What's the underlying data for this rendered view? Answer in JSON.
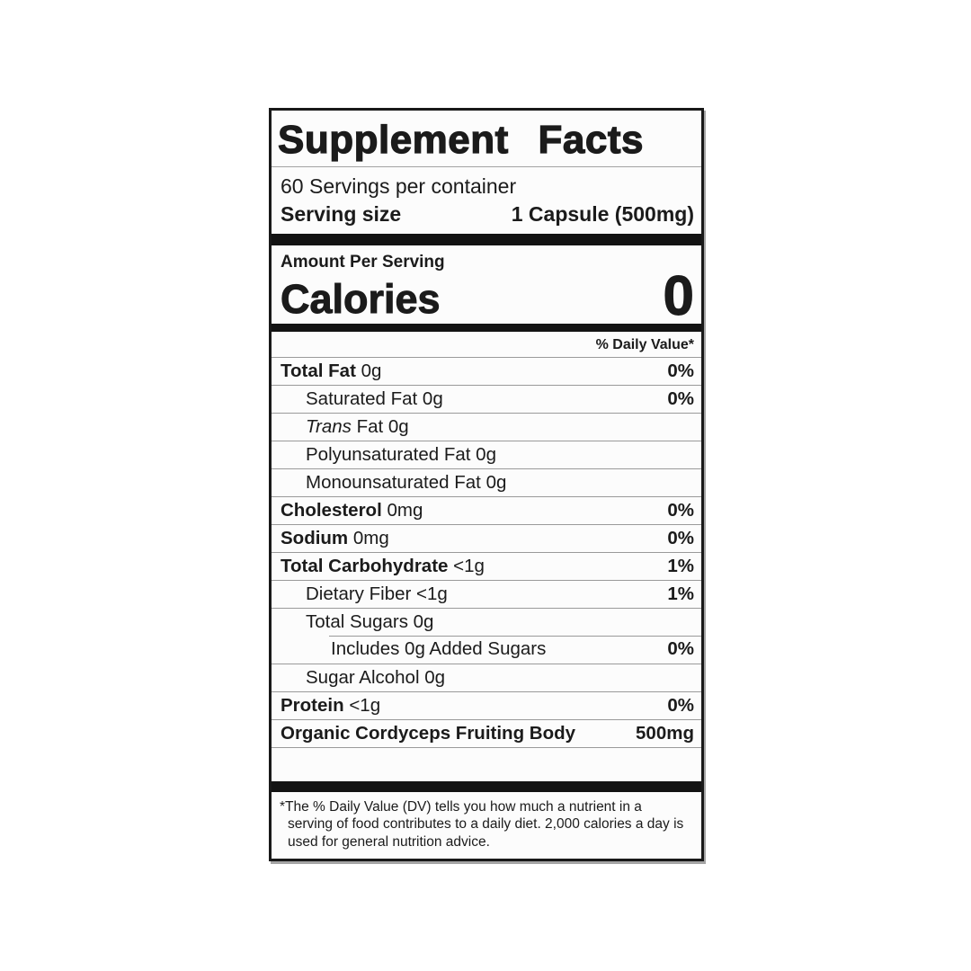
{
  "label": {
    "title": "Supplement Facts",
    "servings_per_container": "60 Servings per container",
    "serving_size": {
      "label": "Serving size",
      "value": "1 Capsule (500mg)"
    },
    "amount_per_serving": "Amount Per Serving",
    "calories": {
      "label": "Calories",
      "value": "0"
    },
    "daily_value_header": "% Daily Value*",
    "rows": [
      {
        "name": "Total Fat",
        "rest": " 0g",
        "dv": "0%"
      },
      {
        "name": "Saturated Fat",
        "rest": " 0g",
        "dv": "0%"
      },
      {
        "name": "Trans",
        "rest": " Fat 0g",
        "dv": ""
      },
      {
        "name": "Polyunsaturated Fat",
        "rest": " 0g",
        "dv": ""
      },
      {
        "name": "Monounsaturated Fat",
        "rest": " 0g",
        "dv": ""
      },
      {
        "name": "Cholesterol",
        "rest": " 0mg",
        "dv": "0%"
      },
      {
        "name": "Sodium",
        "rest": " 0mg",
        "dv": "0%"
      },
      {
        "name": "Total Carbohydrate",
        "rest": " <1g",
        "dv": "1%"
      },
      {
        "name": "Dietary Fiber",
        "rest": " <1g",
        "dv": "1%"
      },
      {
        "name": "Total Sugars",
        "rest": " 0g",
        "dv": ""
      },
      {
        "name": "Includes 0g Added Sugars",
        "rest": "",
        "dv": "0%"
      },
      {
        "name": "Sugar Alcohol",
        "rest": " 0g",
        "dv": ""
      },
      {
        "name": "Protein",
        "rest": " <1g",
        "dv": "0%"
      },
      {
        "name": "Organic Cordyceps Fruiting Body",
        "rest": "",
        "dv": "500mg"
      }
    ],
    "footnote": {
      "marker": "*",
      "text": "The % Daily Value (DV) tells you how much a nutrient in a serving of food contributes to a daily diet. 2,000 calories a day is used for general nutrition advice."
    },
    "colors": {
      "text": "#1b1b1b",
      "bar": "#131313",
      "hairline": "#9a9a9a"
    }
  }
}
